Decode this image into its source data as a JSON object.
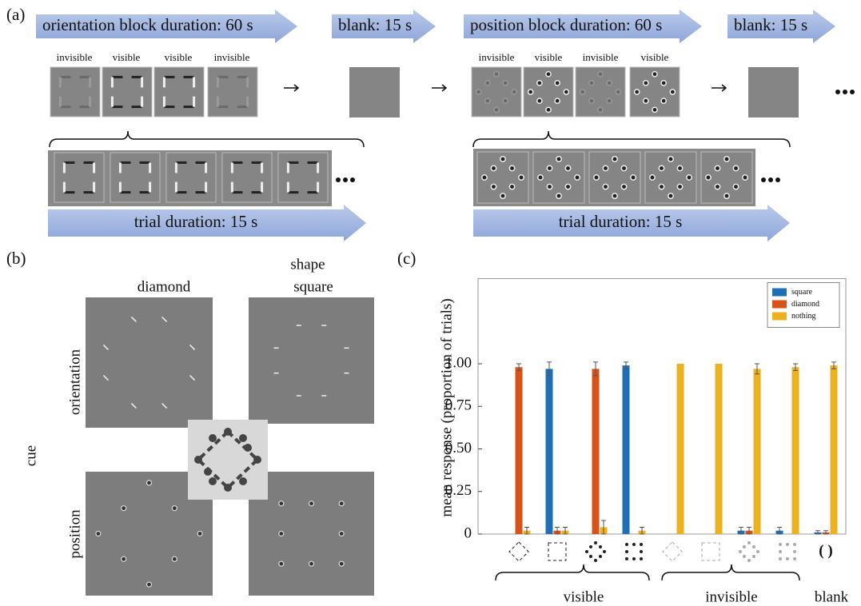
{
  "panel_a": {
    "label": "(a)",
    "arrows": [
      "orientation block duration: 60 s",
      "blank: 15 s",
      "position block duration: 60 s",
      "blank: 15 s",
      "trial duration: 15 s",
      "trial duration: 15 s"
    ],
    "stimulus_labels_left": [
      "invisible",
      "visible",
      "visible",
      "invisible"
    ],
    "stimulus_labels_right": [
      "invisible",
      "visible",
      "invisible",
      "visible"
    ]
  },
  "panel_b": {
    "label": "(b)",
    "column_header": "shape",
    "columns": [
      "diamond",
      "square"
    ],
    "row_header": "cue",
    "rows": [
      "orientation",
      "position"
    ]
  },
  "chart_data": {
    "type": "bar",
    "label": "(c)",
    "ylabel": "mean response (proportion of trials)",
    "categories": [
      null,
      null,
      null,
      null,
      null,
      null,
      null,
      null,
      null
    ],
    "group_labels": [
      "visible",
      "invisible",
      "blank"
    ],
    "series": [
      {
        "name": "square",
        "color": "#1f6fb5",
        "values": [
          0,
          0.97,
          0,
          0.99,
          0,
          0,
          0.02,
          0.02,
          0.01
        ],
        "errors": [
          0,
          0.04,
          0,
          0.02,
          0,
          0,
          0.02,
          0.02,
          0.01
        ]
      },
      {
        "name": "diamond",
        "color": "#d95319",
        "values": [
          0.98,
          0.02,
          0.97,
          0,
          0,
          0,
          0.02,
          0,
          0.01
        ],
        "errors": [
          0.02,
          0.02,
          0.04,
          0,
          0,
          0,
          0.02,
          0,
          0.01
        ]
      },
      {
        "name": "nothing",
        "color": "#edb120",
        "values": [
          0.02,
          0.02,
          0.04,
          0.02,
          1,
          1,
          0.97,
          0.98,
          0.99
        ],
        "errors": [
          0.02,
          0.02,
          0.04,
          0.02,
          0,
          0,
          0.03,
          0.02,
          0.02
        ]
      }
    ],
    "ylim": [
      0,
      1.5
    ],
    "yticks": [
      0,
      0.25,
      {
        "value": 0.5,
        "label": "0.50"
      },
      0.75,
      {
        "value": 1,
        "label": "1.00"
      }
    ],
    "legend": "upper right"
  }
}
